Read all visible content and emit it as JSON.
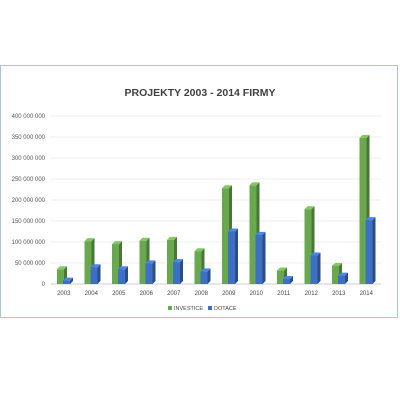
{
  "chart_data": {
    "type": "bar",
    "title": "PROJEKTY  2003 - 2014  FIRMY",
    "categories": [
      "2003",
      "2004",
      "2005",
      "2006",
      "2007",
      "2008",
      "2009",
      "2010",
      "2011",
      "2012",
      "2013",
      "2014"
    ],
    "series": [
      {
        "name": "INVESTICE",
        "color": "#6aa84f",
        "values": [
          35000000,
          102000000,
          95000000,
          103000000,
          105000000,
          78000000,
          228000000,
          235000000,
          32000000,
          178000000,
          43000000,
          348000000
        ]
      },
      {
        "name": "DOTACE",
        "color": "#3d6fc4",
        "values": [
          8000000,
          40000000,
          35000000,
          49000000,
          52000000,
          30000000,
          125000000,
          117000000,
          12000000,
          68000000,
          20000000,
          152000000
        ]
      }
    ],
    "yticks": [
      "0",
      "50 000 000",
      "100 000 000",
      "150 000 000",
      "200 000 000",
      "250 000 000",
      "300 000 000",
      "350 000 000",
      "400 000 000"
    ],
    "ylim": [
      0,
      400000000
    ],
    "grid": true,
    "legend_position": "bottom"
  }
}
